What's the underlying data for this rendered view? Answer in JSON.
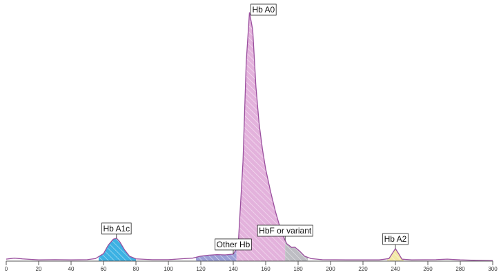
{
  "chart_data": {
    "type": "chromatogram",
    "x": [
      0,
      5,
      10,
      20,
      30,
      40,
      50,
      55,
      60,
      63,
      66,
      68,
      70,
      73,
      76,
      80,
      90,
      100,
      110,
      115,
      120,
      125,
      130,
      135,
      140,
      143,
      146,
      148,
      150,
      152,
      154,
      156,
      158,
      160,
      163,
      166,
      170,
      173,
      176,
      178,
      181,
      184,
      188,
      195,
      210,
      230,
      236,
      238,
      240,
      242,
      244,
      250,
      265,
      272,
      280,
      290,
      300
    ],
    "values": [
      0.8,
      1.2,
      0.9,
      0.5,
      0.6,
      0.5,
      0.6,
      1,
      3,
      6.5,
      8.8,
      9.2,
      7.8,
      4.5,
      2,
      0.9,
      0.6,
      0.6,
      1,
      1.2,
      2,
      2.4,
      2.6,
      2.5,
      2.8,
      6,
      40,
      80,
      100,
      93,
      70,
      55,
      45,
      37,
      28,
      20,
      11,
      7,
      5.5,
      5.6,
      4,
      2,
      1,
      0.6,
      0.5,
      0.5,
      1,
      3,
      5,
      3,
      0.8,
      0.5,
      0.6,
      0.8,
      0.5,
      0.3,
      0.2
    ],
    "color": "#9a4f9e",
    "xlim": [
      0,
      300
    ],
    "ylim": [
      0,
      100
    ],
    "xticks": [
      0,
      20,
      40,
      60,
      80,
      100,
      120,
      140,
      160,
      180,
      200,
      220,
      240,
      260,
      280,
      300
    ],
    "peaks": [
      {
        "label": "Hb A1c",
        "color": "#3cb1e3",
        "range": [
          57,
          80
        ]
      },
      {
        "label": "Other Hb",
        "color": "#9c9fd6",
        "range": [
          117,
          142
        ]
      },
      {
        "label": "Hb A0",
        "color": "#e3b2dc",
        "range": [
          142,
          172
        ]
      },
      {
        "label": "HbF or variant",
        "color": "#bdbdc3",
        "range": [
          172,
          186
        ]
      },
      {
        "label": "Hb A2",
        "color": "#f3e8a6",
        "range": [
          235,
          245
        ]
      }
    ]
  }
}
